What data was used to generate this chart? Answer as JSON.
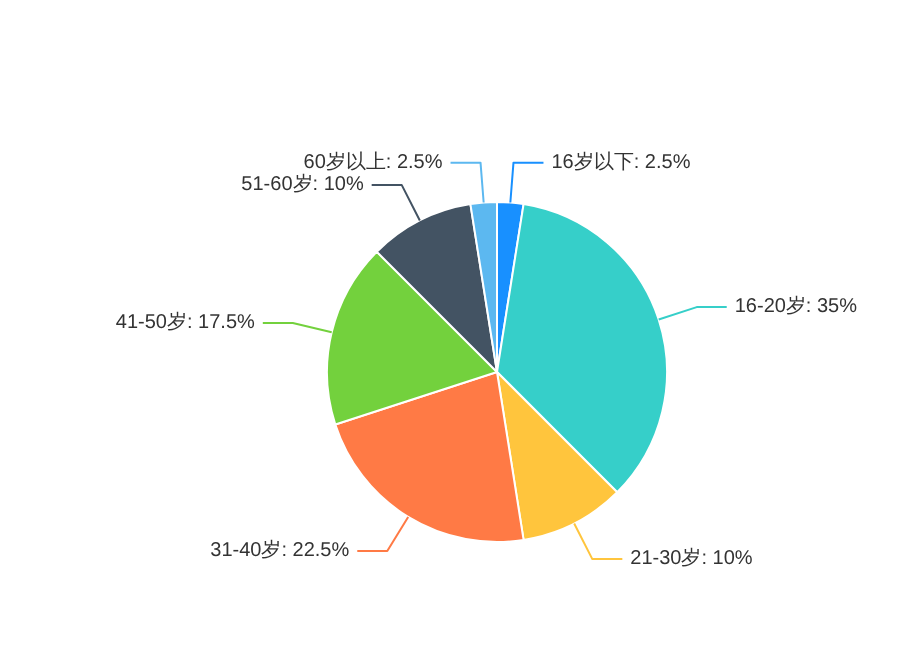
{
  "chart_data": {
    "type": "pie",
    "categories": [
      "16岁以下",
      "16-20岁",
      "21-30岁",
      "31-40岁",
      "41-50岁",
      "51-60岁",
      "60岁以上"
    ],
    "values": [
      2.5,
      35,
      10,
      22.5,
      17.5,
      10,
      2.5
    ],
    "colors": [
      "#1890ff",
      "#36cfc9",
      "#ffc53d",
      "#ff7a45",
      "#73d13d",
      "#435363",
      "#5cb8f0"
    ],
    "value_labels": [
      "2.5%",
      "35%",
      "10%",
      "22.5%",
      "17.5%",
      "10%",
      "2.5%"
    ],
    "legend": false
  }
}
